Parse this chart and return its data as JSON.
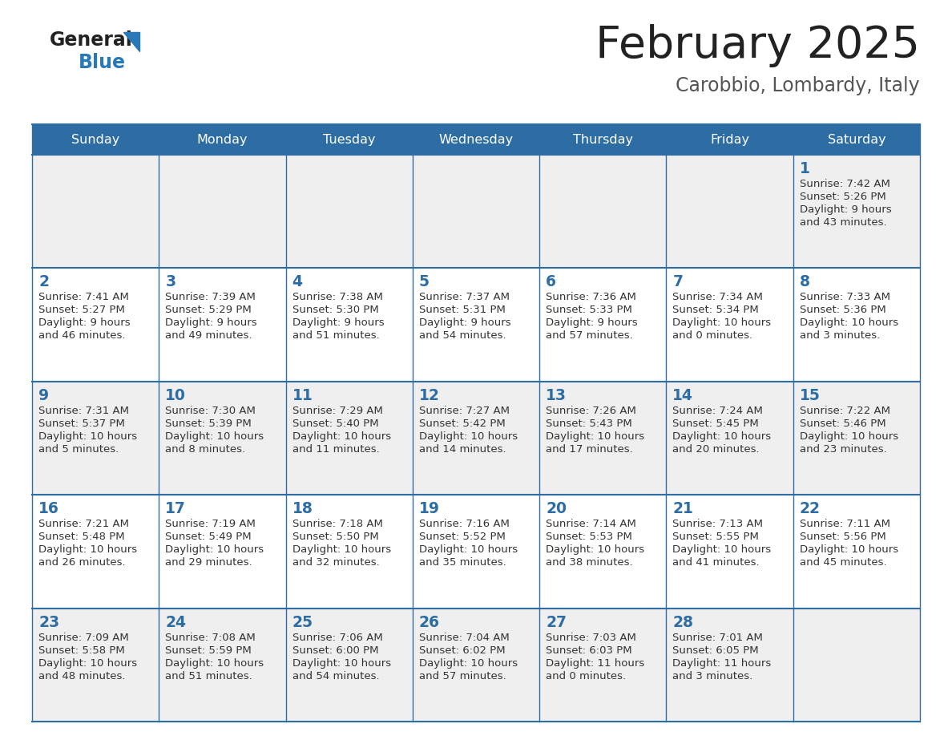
{
  "title": "February 2025",
  "subtitle": "Carobbio, Lombardy, Italy",
  "days_of_week": [
    "Sunday",
    "Monday",
    "Tuesday",
    "Wednesday",
    "Thursday",
    "Friday",
    "Saturday"
  ],
  "header_bg": "#2E6DA4",
  "header_text": "#FFFFFF",
  "cell_bg_odd": "#EFEFEF",
  "cell_bg_even": "#FFFFFF",
  "border_color": "#2E6DA4",
  "day_num_color": "#2E6DA4",
  "text_color": "#333333",
  "logo_general_color": "#222222",
  "logo_blue_color": "#2979B8",
  "title_color": "#222222",
  "subtitle_color": "#555555",
  "calendar_data": [
    [
      null,
      null,
      null,
      null,
      null,
      null,
      {
        "day": 1,
        "sunrise": "7:42 AM",
        "sunset": "5:26 PM",
        "daylight_a": "9 hours",
        "daylight_b": "and 43 minutes."
      }
    ],
    [
      {
        "day": 2,
        "sunrise": "7:41 AM",
        "sunset": "5:27 PM",
        "daylight_a": "9 hours",
        "daylight_b": "and 46 minutes."
      },
      {
        "day": 3,
        "sunrise": "7:39 AM",
        "sunset": "5:29 PM",
        "daylight_a": "9 hours",
        "daylight_b": "and 49 minutes."
      },
      {
        "day": 4,
        "sunrise": "7:38 AM",
        "sunset": "5:30 PM",
        "daylight_a": "9 hours",
        "daylight_b": "and 51 minutes."
      },
      {
        "day": 5,
        "sunrise": "7:37 AM",
        "sunset": "5:31 PM",
        "daylight_a": "9 hours",
        "daylight_b": "and 54 minutes."
      },
      {
        "day": 6,
        "sunrise": "7:36 AM",
        "sunset": "5:33 PM",
        "daylight_a": "9 hours",
        "daylight_b": "and 57 minutes."
      },
      {
        "day": 7,
        "sunrise": "7:34 AM",
        "sunset": "5:34 PM",
        "daylight_a": "10 hours",
        "daylight_b": "and 0 minutes."
      },
      {
        "day": 8,
        "sunrise": "7:33 AM",
        "sunset": "5:36 PM",
        "daylight_a": "10 hours",
        "daylight_b": "and 3 minutes."
      }
    ],
    [
      {
        "day": 9,
        "sunrise": "7:31 AM",
        "sunset": "5:37 PM",
        "daylight_a": "10 hours",
        "daylight_b": "and 5 minutes."
      },
      {
        "day": 10,
        "sunrise": "7:30 AM",
        "sunset": "5:39 PM",
        "daylight_a": "10 hours",
        "daylight_b": "and 8 minutes."
      },
      {
        "day": 11,
        "sunrise": "7:29 AM",
        "sunset": "5:40 PM",
        "daylight_a": "10 hours",
        "daylight_b": "and 11 minutes."
      },
      {
        "day": 12,
        "sunrise": "7:27 AM",
        "sunset": "5:42 PM",
        "daylight_a": "10 hours",
        "daylight_b": "and 14 minutes."
      },
      {
        "day": 13,
        "sunrise": "7:26 AM",
        "sunset": "5:43 PM",
        "daylight_a": "10 hours",
        "daylight_b": "and 17 minutes."
      },
      {
        "day": 14,
        "sunrise": "7:24 AM",
        "sunset": "5:45 PM",
        "daylight_a": "10 hours",
        "daylight_b": "and 20 minutes."
      },
      {
        "day": 15,
        "sunrise": "7:22 AM",
        "sunset": "5:46 PM",
        "daylight_a": "10 hours",
        "daylight_b": "and 23 minutes."
      }
    ],
    [
      {
        "day": 16,
        "sunrise": "7:21 AM",
        "sunset": "5:48 PM",
        "daylight_a": "10 hours",
        "daylight_b": "and 26 minutes."
      },
      {
        "day": 17,
        "sunrise": "7:19 AM",
        "sunset": "5:49 PM",
        "daylight_a": "10 hours",
        "daylight_b": "and 29 minutes."
      },
      {
        "day": 18,
        "sunrise": "7:18 AM",
        "sunset": "5:50 PM",
        "daylight_a": "10 hours",
        "daylight_b": "and 32 minutes."
      },
      {
        "day": 19,
        "sunrise": "7:16 AM",
        "sunset": "5:52 PM",
        "daylight_a": "10 hours",
        "daylight_b": "and 35 minutes."
      },
      {
        "day": 20,
        "sunrise": "7:14 AM",
        "sunset": "5:53 PM",
        "daylight_a": "10 hours",
        "daylight_b": "and 38 minutes."
      },
      {
        "day": 21,
        "sunrise": "7:13 AM",
        "sunset": "5:55 PM",
        "daylight_a": "10 hours",
        "daylight_b": "and 41 minutes."
      },
      {
        "day": 22,
        "sunrise": "7:11 AM",
        "sunset": "5:56 PM",
        "daylight_a": "10 hours",
        "daylight_b": "and 45 minutes."
      }
    ],
    [
      {
        "day": 23,
        "sunrise": "7:09 AM",
        "sunset": "5:58 PM",
        "daylight_a": "10 hours",
        "daylight_b": "and 48 minutes."
      },
      {
        "day": 24,
        "sunrise": "7:08 AM",
        "sunset": "5:59 PM",
        "daylight_a": "10 hours",
        "daylight_b": "and 51 minutes."
      },
      {
        "day": 25,
        "sunrise": "7:06 AM",
        "sunset": "6:00 PM",
        "daylight_a": "10 hours",
        "daylight_b": "and 54 minutes."
      },
      {
        "day": 26,
        "sunrise": "7:04 AM",
        "sunset": "6:02 PM",
        "daylight_a": "10 hours",
        "daylight_b": "and 57 minutes."
      },
      {
        "day": 27,
        "sunrise": "7:03 AM",
        "sunset": "6:03 PM",
        "daylight_a": "11 hours",
        "daylight_b": "and 0 minutes."
      },
      {
        "day": 28,
        "sunrise": "7:01 AM",
        "sunset": "6:05 PM",
        "daylight_a": "11 hours",
        "daylight_b": "and 3 minutes."
      },
      null
    ]
  ]
}
